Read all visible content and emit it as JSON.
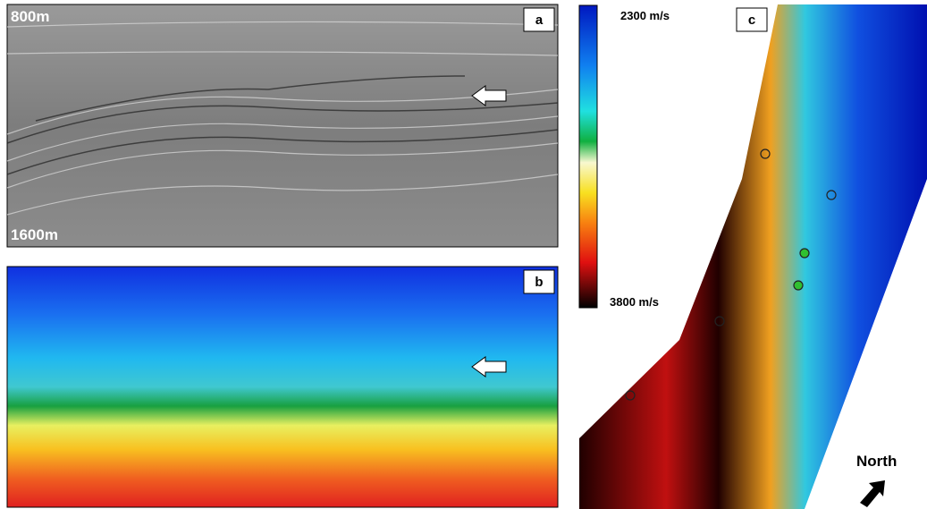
{
  "panels": [
    {
      "label": "a",
      "top_depth": "800m",
      "bottom_depth": "1600m"
    },
    {
      "label": "b"
    },
    {
      "label": "c"
    }
  ],
  "colorbar": {
    "top_label": "2300 m/s",
    "bottom_label": "3800 m/s"
  },
  "north_label": "North"
}
